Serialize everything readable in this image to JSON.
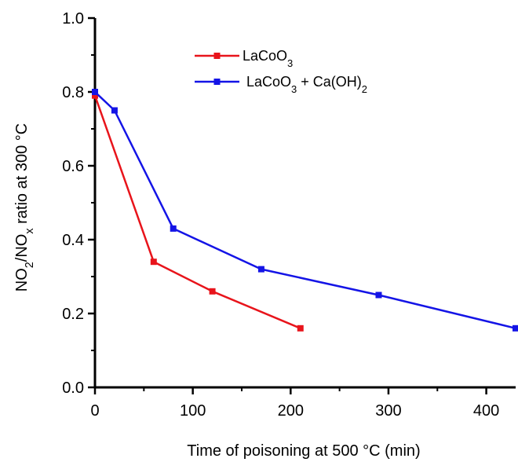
{
  "chart_data": {
    "type": "line",
    "title": "",
    "xlabel": "Time of poisoning at 500 °C (min)",
    "ylabel": {
      "parts": [
        {
          "text": "NO",
          "shift": "base"
        },
        {
          "text": "2",
          "shift": "sub"
        },
        {
          "text": "/NO",
          "shift": "base"
        },
        {
          "text": "x",
          "shift": "sub"
        },
        {
          "text": " ratio at 300 °C",
          "shift": "base"
        }
      ]
    },
    "xlim": [
      0,
      430
    ],
    "ylim": [
      0.0,
      1.0
    ],
    "xticks": [
      0,
      100,
      200,
      300,
      400
    ],
    "yticks": [
      0.0,
      0.2,
      0.4,
      0.6,
      0.8,
      1.0
    ],
    "xtick_labels": [
      "0",
      "100",
      "200",
      "300",
      "400"
    ],
    "ytick_labels": [
      "0.0",
      "0.2",
      "0.4",
      "0.6",
      "0.8",
      "1.0"
    ],
    "grid": false,
    "legend_position": "top-center",
    "series": [
      {
        "color": "#e8141b",
        "label_parts": [
          {
            "text": "LaCoO",
            "shift": "base"
          },
          {
            "text": "3",
            "shift": "sub"
          }
        ],
        "x": [
          0,
          60,
          120,
          210
        ],
        "y": [
          0.79,
          0.34,
          0.26,
          0.16
        ]
      },
      {
        "color": "#1414e6",
        "label_parts": [
          {
            "text": "LaCoO",
            "shift": "base"
          },
          {
            "text": "3",
            "shift": "sub"
          },
          {
            "text": " + Ca(OH)",
            "shift": "base"
          },
          {
            "text": "2",
            "shift": "sub"
          }
        ],
        "x": [
          0,
          20,
          80,
          170,
          290,
          430
        ],
        "y": [
          0.8,
          0.75,
          0.43,
          0.32,
          0.25,
          0.16
        ]
      }
    ]
  }
}
